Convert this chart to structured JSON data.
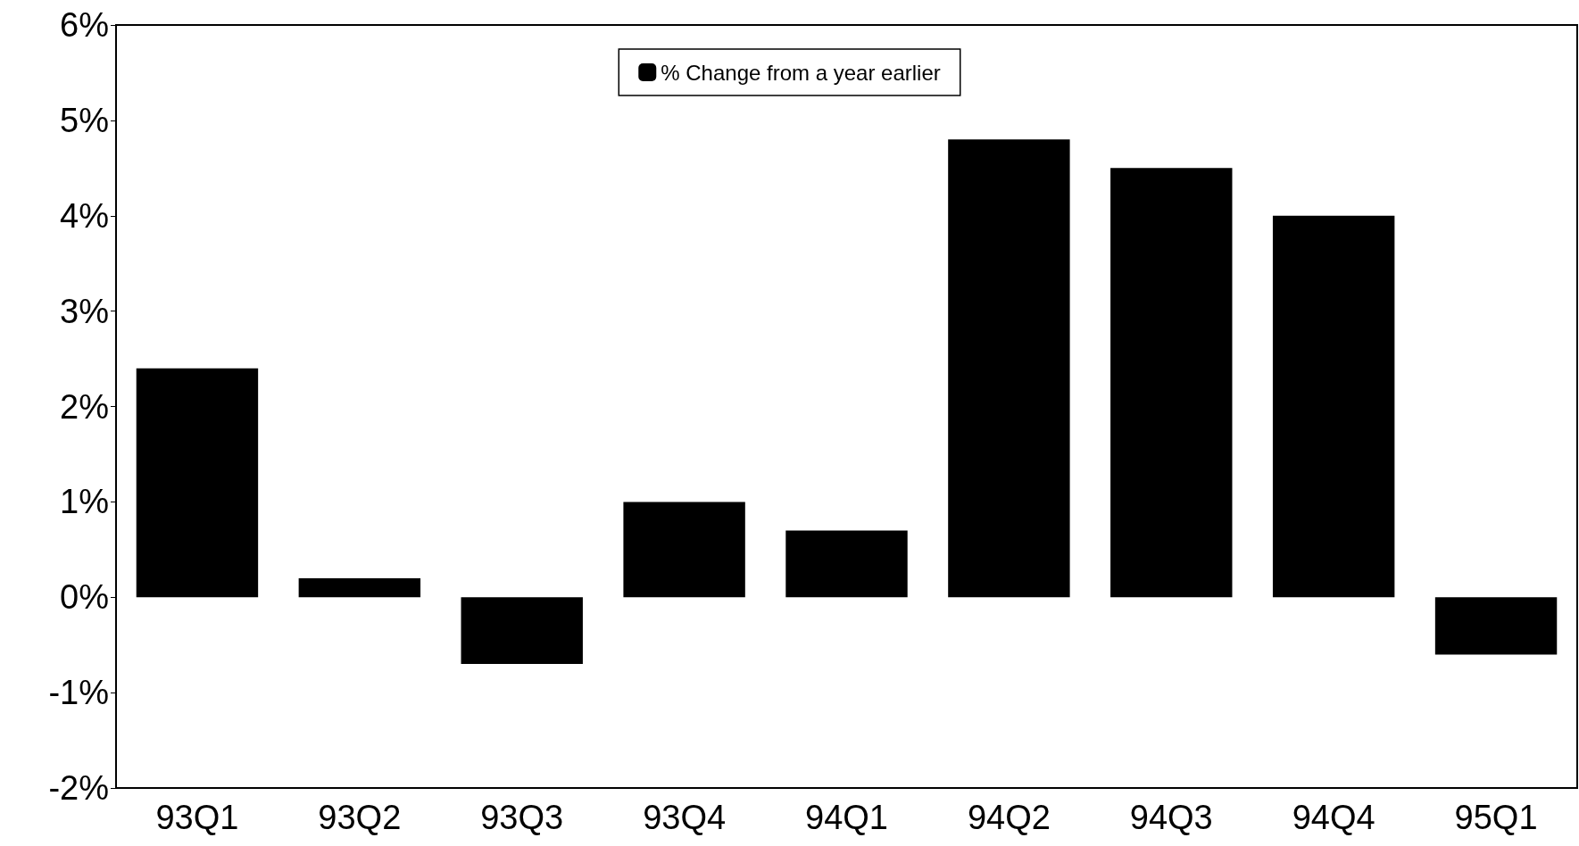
{
  "chart_data": {
    "type": "bar",
    "categories": [
      "93Q1",
      "93Q2",
      "93Q3",
      "93Q4",
      "94Q1",
      "94Q2",
      "94Q3",
      "94Q4",
      "95Q1"
    ],
    "series": [
      {
        "name": "% Change from a year earlier",
        "color": "#000000",
        "values": [
          2.4,
          0.2,
          -0.7,
          1.0,
          0.7,
          4.8,
          4.5,
          4.0,
          -0.6
        ]
      }
    ],
    "ylim": [
      -2,
      6
    ],
    "yticks": [
      {
        "value": -2,
        "label": "-2%"
      },
      {
        "value": -1,
        "label": "-1%"
      },
      {
        "value": 0,
        "label": "0%"
      },
      {
        "value": 1,
        "label": "1%"
      },
      {
        "value": 2,
        "label": "2%"
      },
      {
        "value": 3,
        "label": "3%"
      },
      {
        "value": 4,
        "label": "4%"
      },
      {
        "value": 5,
        "label": "5%"
      },
      {
        "value": 6,
        "label": "6%"
      }
    ],
    "grid": false,
    "legend": "top"
  }
}
